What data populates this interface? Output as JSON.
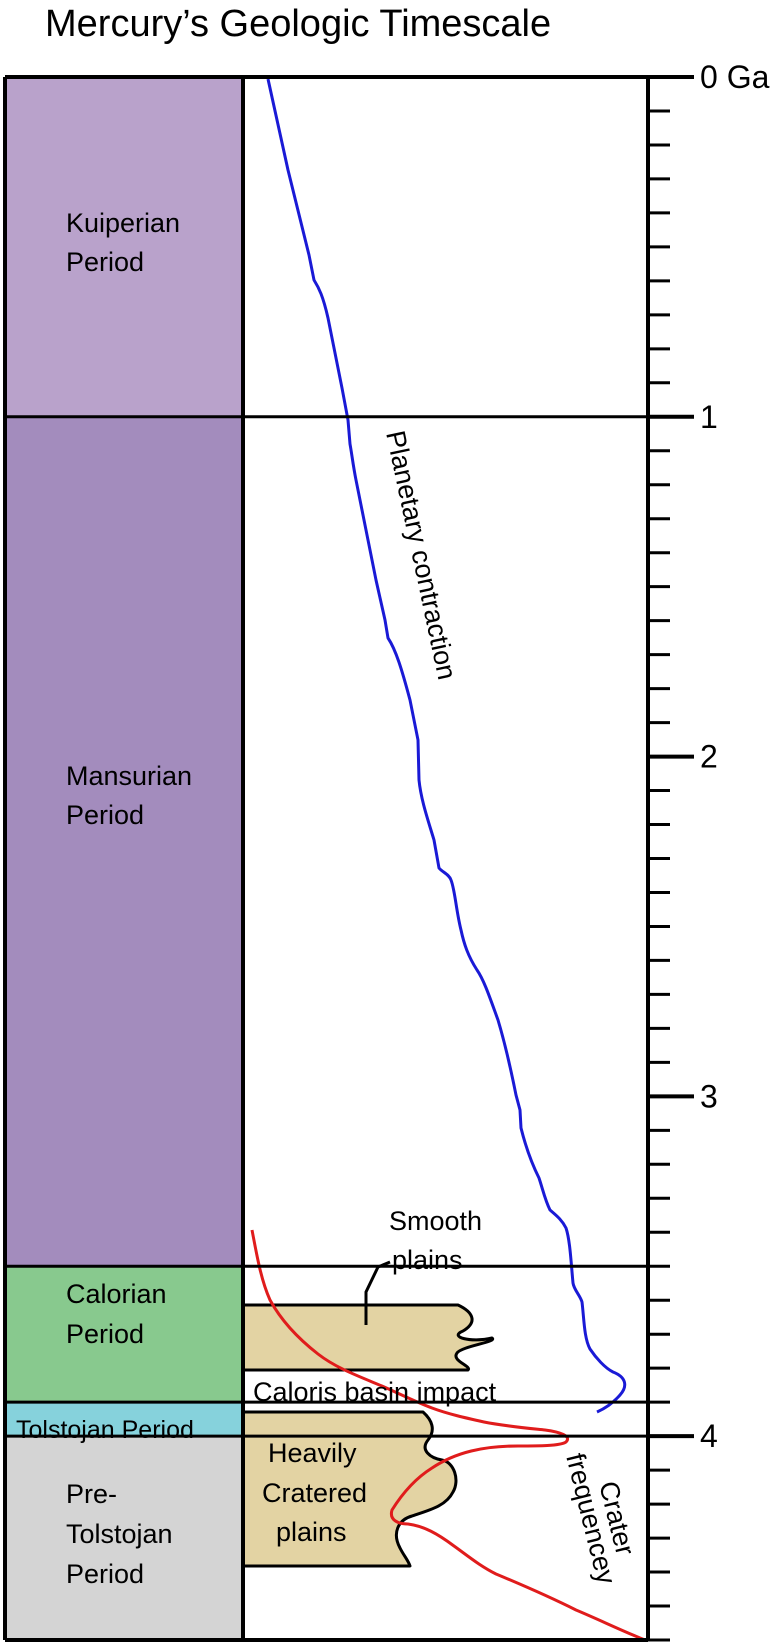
{
  "title": "Mercury’s Geologic Timescale",
  "axis": {
    "unit": "Ga",
    "range_ga": [
      0,
      4.6
    ],
    "major_ticks": [
      {
        "value": 0,
        "label": "0 Ga"
      },
      {
        "value": 1,
        "label": "1"
      },
      {
        "value": 2,
        "label": "2"
      },
      {
        "value": 3,
        "label": "3"
      },
      {
        "value": 4,
        "label": "4"
      }
    ],
    "minor_step_ga": 0.1
  },
  "periods": [
    {
      "id": "kuiperian",
      "lines": [
        "Kuiperian",
        "Period"
      ],
      "start_ga": 0,
      "end_ga": 1.0,
      "color": "#b9a2cb"
    },
    {
      "id": "mansurian",
      "lines": [
        "Mansurian",
        "Period"
      ],
      "start_ga": 1.0,
      "end_ga": 3.5,
      "color": "#a38cbd"
    },
    {
      "id": "calorian",
      "lines": [
        "Calorian",
        "Period"
      ],
      "start_ga": 3.5,
      "end_ga": 3.9,
      "color": "#88c98e"
    },
    {
      "id": "tolstojan",
      "lines": [
        "Tolstojan Period"
      ],
      "start_ga": 3.9,
      "end_ga": 4.0,
      "color": "#86d2dc"
    },
    {
      "id": "pre-tolstojan",
      "lines": [
        "Pre-",
        "Tolstojan",
        "Period"
      ],
      "start_ga": 4.0,
      "end_ga": 4.6,
      "color": "#d4d4d4"
    }
  ],
  "annotations": {
    "smooth_plains": [
      "Smooth",
      "plains"
    ],
    "caloris": "Caloris basin impact",
    "heavily_cratered": [
      "Heavily",
      "Cratered",
      "plains"
    ],
    "contraction": "Planetary contraction",
    "crater_frequency": [
      "Crater",
      "frequencey"
    ]
  },
  "colors": {
    "contraction_line": "#1a1ad6",
    "crater_line": "#e01c1c",
    "plains_fill": "#e3d3a3"
  }
}
